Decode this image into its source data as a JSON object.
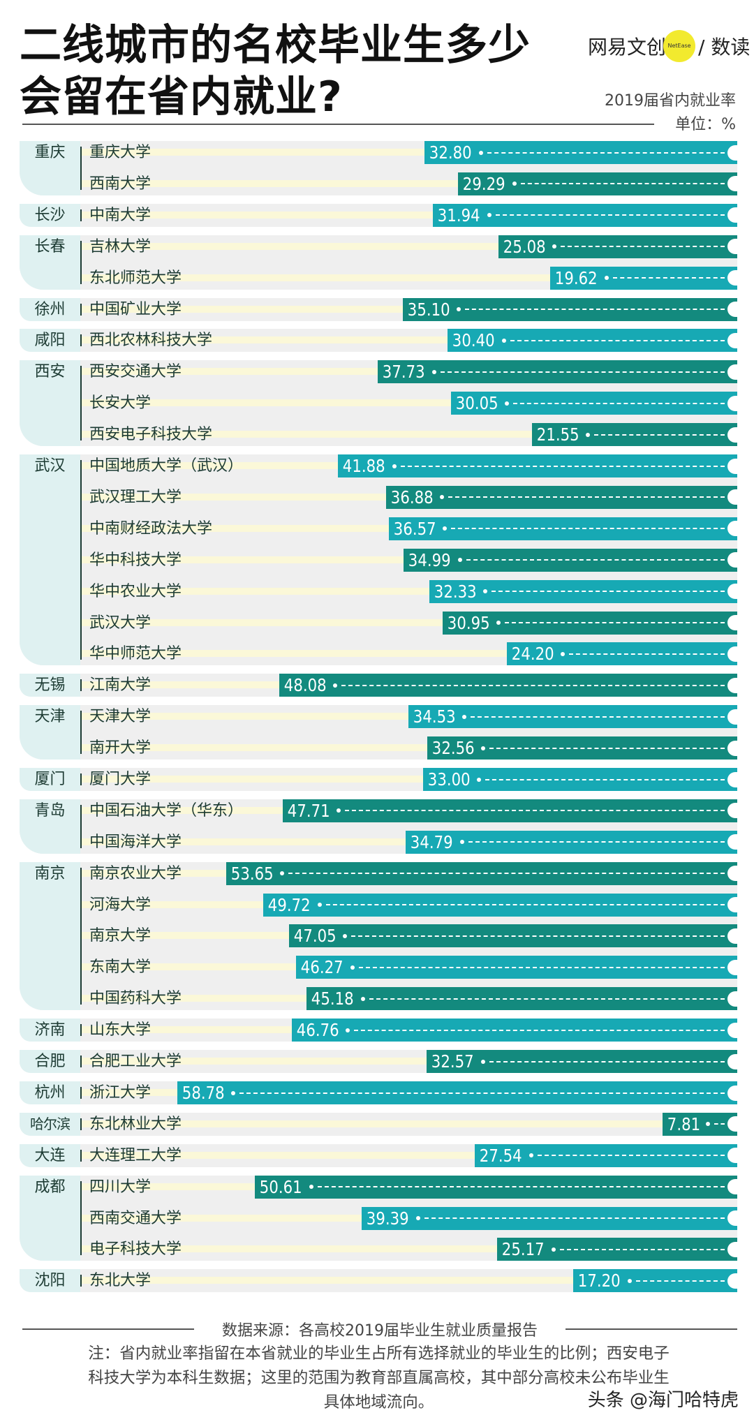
{
  "header": {
    "title_line1": "二线城市的名校毕业生多少",
    "title_line2": "会留在省内就业?",
    "logo_text": "网易文创",
    "logo_badge": "NetEase",
    "logo_suffix": "/ 数读",
    "subtitle": "2019届省内就业率",
    "unit": "单位：%"
  },
  "colors": {
    "bar_light": "#17a9b4",
    "bar_dark": "#138a7e",
    "city_band": "#dff1f1",
    "row_bg": "#efefef",
    "stripe": "#fbf8d8"
  },
  "chart_data": {
    "type": "bar",
    "orientation": "horizontal",
    "subtitle": "2019届省内就业率",
    "unit": "单位：%",
    "groups": [
      {
        "city": "重庆",
        "schools": [
          {
            "name": "重庆大学",
            "value": 32.8,
            "label": "32.80"
          },
          {
            "name": "西南大学",
            "value": 29.29,
            "label": "29.29"
          }
        ]
      },
      {
        "city": "长沙",
        "schools": [
          {
            "name": "中南大学",
            "value": 31.94,
            "label": "31.94"
          }
        ]
      },
      {
        "city": "长春",
        "schools": [
          {
            "name": "吉林大学",
            "value": 25.08,
            "label": "25.08"
          },
          {
            "name": "东北师范大学",
            "value": 19.62,
            "label": "19.62"
          }
        ]
      },
      {
        "city": "徐州",
        "schools": [
          {
            "name": "中国矿业大学",
            "value": 35.1,
            "label": "35.10"
          }
        ]
      },
      {
        "city": "咸阳",
        "schools": [
          {
            "name": "西北农林科技大学",
            "value": 30.4,
            "label": "30.40"
          }
        ]
      },
      {
        "city": "西安",
        "schools": [
          {
            "name": "西安交通大学",
            "value": 37.73,
            "label": "37.73"
          },
          {
            "name": "长安大学",
            "value": 30.05,
            "label": "30.05"
          },
          {
            "name": "西安电子科技大学",
            "value": 21.55,
            "label": "21.55"
          }
        ]
      },
      {
        "city": "武汉",
        "schools": [
          {
            "name": "中国地质大学（武汉）",
            "value": 41.88,
            "label": "41.88"
          },
          {
            "name": "武汉理工大学",
            "value": 36.88,
            "label": "36.88"
          },
          {
            "name": "中南财经政法大学",
            "value": 36.57,
            "label": "36.57"
          },
          {
            "name": "华中科技大学",
            "value": 34.99,
            "label": "34.99"
          },
          {
            "name": "华中农业大学",
            "value": 32.33,
            "label": "32.33"
          },
          {
            "name": "武汉大学",
            "value": 30.95,
            "label": "30.95"
          },
          {
            "name": "华中师范大学",
            "value": 24.2,
            "label": "24.20"
          }
        ]
      },
      {
        "city": "无锡",
        "schools": [
          {
            "name": "江南大学",
            "value": 48.08,
            "label": "48.08"
          }
        ]
      },
      {
        "city": "天津",
        "schools": [
          {
            "name": "天津大学",
            "value": 34.53,
            "label": "34.53"
          },
          {
            "name": "南开大学",
            "value": 32.56,
            "label": "32.56"
          }
        ]
      },
      {
        "city": "厦门",
        "schools": [
          {
            "name": "厦门大学",
            "value": 33.0,
            "label": "33.00"
          }
        ]
      },
      {
        "city": "青岛",
        "schools": [
          {
            "name": "中国石油大学（华东）",
            "value": 47.71,
            "label": "47.71"
          },
          {
            "name": "中国海洋大学",
            "value": 34.79,
            "label": "34.79"
          }
        ]
      },
      {
        "city": "南京",
        "schools": [
          {
            "name": "南京农业大学",
            "value": 53.65,
            "label": "53.65"
          },
          {
            "name": "河海大学",
            "value": 49.72,
            "label": "49.72"
          },
          {
            "name": "南京大学",
            "value": 47.05,
            "label": "47.05"
          },
          {
            "name": "东南大学",
            "value": 46.27,
            "label": "46.27"
          },
          {
            "name": "中国药科大学",
            "value": 45.18,
            "label": "45.18"
          }
        ]
      },
      {
        "city": "济南",
        "schools": [
          {
            "name": "山东大学",
            "value": 46.76,
            "label": "46.76"
          }
        ]
      },
      {
        "city": "合肥",
        "schools": [
          {
            "name": "合肥工业大学",
            "value": 32.57,
            "label": "32.57"
          }
        ]
      },
      {
        "city": "杭州",
        "schools": [
          {
            "name": "浙江大学",
            "value": 58.78,
            "label": "58.78"
          }
        ]
      },
      {
        "city": "哈尔滨",
        "schools": [
          {
            "name": "东北林业大学",
            "value": 7.81,
            "label": "7.81"
          }
        ]
      },
      {
        "city": "大连",
        "schools": [
          {
            "name": "大连理工大学",
            "value": 27.54,
            "label": "27.54"
          }
        ]
      },
      {
        "city": "成都",
        "schools": [
          {
            "name": "四川大学",
            "value": 50.61,
            "label": "50.61"
          },
          {
            "name": "西南交通大学",
            "value": 39.39,
            "label": "39.39"
          },
          {
            "name": "电子科技大学",
            "value": 25.17,
            "label": "25.17"
          }
        ]
      },
      {
        "city": "沈阳",
        "schools": [
          {
            "name": "东北大学",
            "value": 17.2,
            "label": "17.20"
          }
        ]
      }
    ]
  },
  "footer": {
    "source": "数据来源：各高校2019届毕业生就业质量报告",
    "note_line1": "注：省内就业率指留在本省就业的毕业生占所有选择就业的毕业生的比例；西安电子",
    "note_line2": "科技大学为本科生数据；这里的范围为教育部直属高校，其中部分高校未公布毕业生",
    "note_line3": "具体地域流向。",
    "watermark": "头条 @海门哈特虎"
  }
}
